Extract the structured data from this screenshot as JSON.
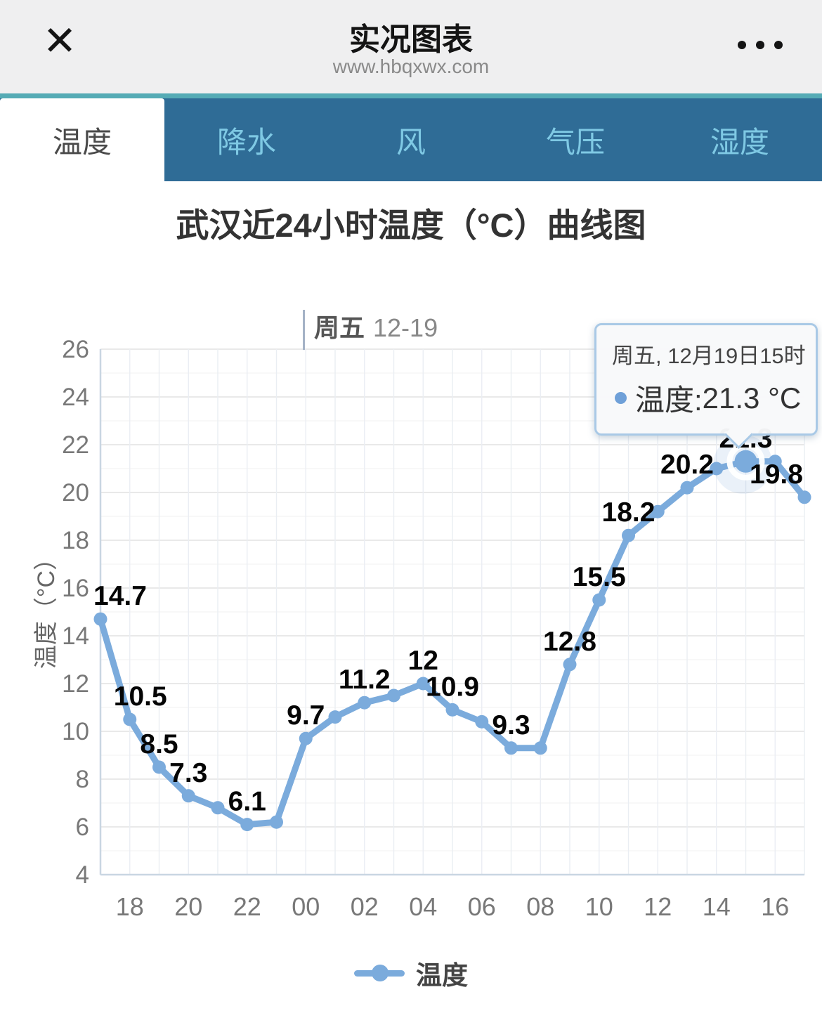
{
  "header": {
    "title": "实况图表",
    "url": "www.hbqxwx.com",
    "close_label": "✕"
  },
  "tabs": [
    {
      "label": "温度",
      "active": true
    },
    {
      "label": "降水",
      "active": false
    },
    {
      "label": "风",
      "active": false
    },
    {
      "label": "气压",
      "active": false
    },
    {
      "label": "湿度",
      "active": false
    }
  ],
  "chart_title": "武汉近24小时温度（°C）曲线图",
  "day_marker": {
    "weekday": "周五",
    "date": "12-19"
  },
  "tooltip": {
    "line1": "周五, 12月19日15时",
    "series_label": "温度:",
    "value": "21.3 °C"
  },
  "legend": {
    "label": "温度"
  },
  "colors": {
    "accent_blue": "#7babdc",
    "tab_bar": "#2f6c96",
    "tab_inactive_text": "#7fc9e4",
    "teal_line": "#55abb5",
    "grid_major": "#e2e2e2",
    "grid_minor": "#f1f1f1",
    "grid_vertical": "#eaeef3",
    "axis_line": "#c9d6e2",
    "tick_text": "#787878",
    "point_label": "#050505"
  },
  "chart_data": {
    "type": "line",
    "title": "武汉近24小时温度（°C）曲线图",
    "ylabel": "温度（°C）",
    "x": [
      "17",
      "18",
      "19",
      "20",
      "21",
      "22",
      "23",
      "00",
      "01",
      "02",
      "03",
      "04",
      "05",
      "06",
      "07",
      "08",
      "09",
      "10",
      "11",
      "12",
      "13",
      "14",
      "15",
      "16",
      "17"
    ],
    "x_axis_labels": [
      "18",
      "20",
      "22",
      "00",
      "02",
      "04",
      "06",
      "08",
      "10",
      "12",
      "14",
      "16"
    ],
    "series": [
      {
        "name": "温度",
        "values": [
          14.7,
          10.5,
          8.5,
          7.3,
          6.8,
          6.1,
          6.2,
          9.7,
          10.6,
          11.2,
          11.5,
          12,
          10.9,
          10.4,
          9.3,
          9.3,
          12.8,
          15.5,
          18.2,
          19.2,
          20.2,
          21.0,
          21.3,
          21.3,
          19.8
        ]
      }
    ],
    "point_labels": [
      "14.7",
      "10.5",
      "8.5",
      "7.3",
      null,
      "6.1",
      null,
      "9.7",
      null,
      "11.2",
      null,
      "12",
      "10.9",
      null,
      "9.3",
      null,
      "12.8",
      "15.5",
      "18.2",
      null,
      "20.2",
      null,
      "21.3",
      null,
      "19.8"
    ],
    "ylim": [
      4,
      26
    ],
    "y_tick_step": 2,
    "grid": true,
    "legend_position": "bottom",
    "selected_index": 22,
    "selected_info": {
      "weekday": "周五",
      "time": "12月19日15时",
      "series": "温度",
      "value": 21.3,
      "unit": "°C"
    }
  }
}
